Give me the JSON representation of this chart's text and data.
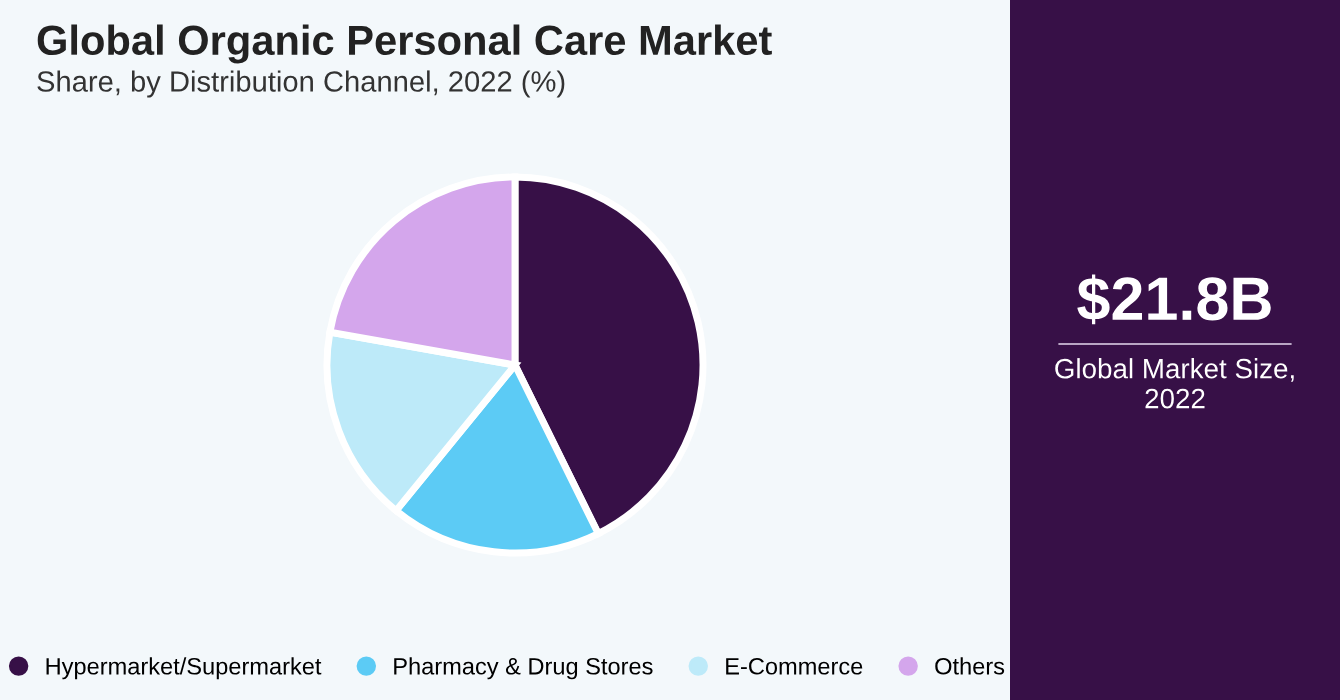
{
  "chart_data": [
    {
      "type": "pie",
      "title": "Global Organic Personal Care Market",
      "subtitle": "Share, by Distribution Channel, 2022 (%)",
      "categories": [
        "Hypermarket/Supermarket",
        "Pharmacy & Drug Stores",
        "E-Commerce",
        "Others"
      ],
      "values": [
        42.7,
        18.2,
        16.9,
        22.2
      ],
      "colors": [
        "#371047",
        "#5ccbf5",
        "#bdeaf9",
        "#d4a6ec"
      ],
      "legend": "bottom"
    },
    {
      "type": "other",
      "title": "$21.8B",
      "subtitle": "Global Market Size,\n2022"
    }
  ]
}
